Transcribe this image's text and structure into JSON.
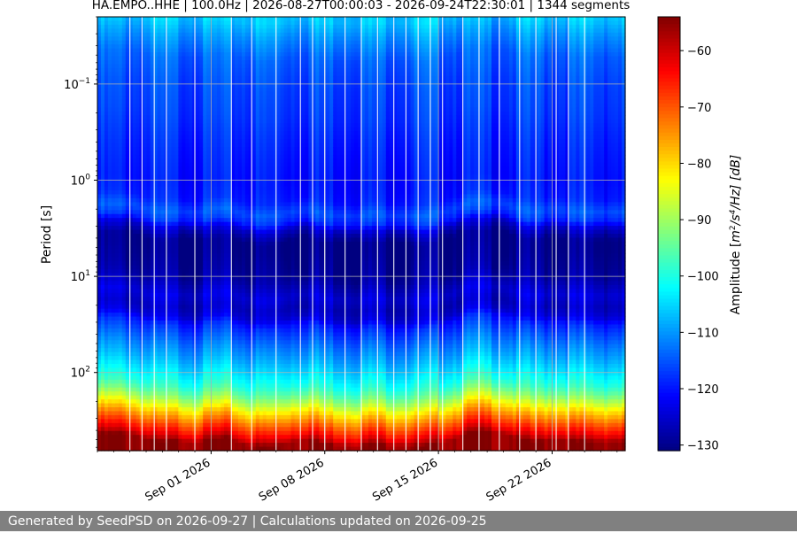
{
  "chart_data": {
    "type": "heatmap",
    "title": "HA.EMPO..HHE | 100.0Hz | 2026-08-27T00:00:03 - 2026-09-24T22:30:01 | 1344 segments",
    "xlabel": "",
    "ylabel": "Period [s]",
    "colorbar_label": "Amplitude [m²/s⁴/Hz] [dB]",
    "colorbar_label_parts": {
      "prefix": "Amplitude [",
      "m": "m",
      "sq": "2",
      "mid": "/s",
      "four": "4",
      "suffix": "/Hz] [dB]"
    },
    "colormap": "jet",
    "y_scale": "log",
    "y_inverted": true,
    "y_range": [
      0.02,
      650
    ],
    "y_ticks": [
      {
        "value": 0.1,
        "base": "10",
        "exp": "−1"
      },
      {
        "value": 1,
        "base": "10",
        "exp": "0"
      },
      {
        "value": 10,
        "base": "10",
        "exp": "1"
      },
      {
        "value": 100,
        "base": "10",
        "exp": "2"
      }
    ],
    "x_range": [
      "2026-08-25T00:00:00",
      "2026-09-26T12:00:00"
    ],
    "x_ticks": [
      {
        "date": "2026-09-01",
        "label": "Sep 01 2026"
      },
      {
        "date": "2026-09-08",
        "label": "Sep 08 2026"
      },
      {
        "date": "2026-09-15",
        "label": "Sep 15 2026"
      },
      {
        "date": "2026-09-22",
        "label": "Sep 22 2026"
      }
    ],
    "color_range": [
      -131,
      -54
    ],
    "colorbar_ticks": [
      -130,
      -120,
      -110,
      -100,
      -90,
      -80,
      -70,
      -60
    ],
    "grid": true,
    "level_profile": {
      "period_s": [
        0.02,
        0.03,
        0.05,
        0.1,
        0.2,
        0.3,
        0.5,
        1,
        1.5,
        2,
        2.5,
        3,
        4,
        5,
        8,
        10,
        15,
        20,
        25,
        30,
        40,
        50,
        70,
        100,
        130,
        160,
        200,
        250,
        300,
        350,
        400,
        450,
        500,
        650
      ],
      "amplitude_db": [
        -106,
        -110,
        -114,
        -116,
        -117,
        -118,
        -119,
        -120,
        -119,
        -115,
        -118,
        -125,
        -130,
        -130,
        -129,
        -128,
        -124,
        -126,
        -124,
        -119,
        -115,
        -112,
        -108,
        -103,
        -99,
        -94,
        -87,
        -79,
        -73,
        -68,
        -64,
        -60,
        -55,
        -55
      ]
    },
    "time_series": {
      "dates": [
        "2026-08-27",
        "2026-08-28",
        "2026-08-29",
        "2026-08-30",
        "2026-08-31",
        "2026-09-01",
        "2026-09-02",
        "2026-09-03",
        "2026-09-04",
        "2026-09-05",
        "2026-09-06",
        "2026-09-07",
        "2026-09-08",
        "2026-09-09",
        "2026-09-10",
        "2026-09-11",
        "2026-09-12",
        "2026-09-13",
        "2026-09-14",
        "2026-09-15",
        "2026-09-16",
        "2026-09-17",
        "2026-09-18",
        "2026-09-19",
        "2026-09-20",
        "2026-09-21",
        "2026-09-22",
        "2026-09-23",
        "2026-09-24"
      ],
      "quiet_period_s": [
        2.6,
        3.0,
        3.2,
        3.1,
        3.3,
        3.0,
        2.9,
        3.4,
        3.6,
        3.5,
        3.2,
        3.0,
        3.4,
        3.5,
        3.6,
        3.3,
        3.5,
        3.5,
        3.6,
        3.3,
        3.0,
        2.5,
        2.5,
        2.6,
        3.0,
        3.2,
        3.0,
        3.1,
        3.2
      ]
    },
    "white_lines": [
      "2026-08-27T00:00:00",
      "2026-08-27T18:00:00",
      "2026-08-28T12:00:00",
      "2026-08-29T06:00:00",
      "2026-08-31T00:00:00",
      "2026-09-02T06:00:00",
      "2026-09-03T12:00:00",
      "2026-09-05T00:00:00",
      "2026-09-06T12:00:00",
      "2026-09-07T06:00:00",
      "2026-09-08T00:00:00",
      "2026-09-09T06:00:00",
      "2026-09-10T06:00:00",
      "2026-09-11T06:00:00",
      "2026-09-12T06:00:00",
      "2026-09-13T00:00:00",
      "2026-09-13T18:00:00",
      "2026-09-14T12:00:00",
      "2026-09-15T06:00:00",
      "2026-09-16T12:00:00",
      "2026-09-17T12:00:00",
      "2026-09-18T18:00:00",
      "2026-09-20T00:00:00",
      "2026-09-21T00:00:00",
      "2026-09-22T06:00:00",
      "2026-09-23T00:00:00",
      "2026-09-24T00:00:00"
    ]
  },
  "footer": {
    "text": "Generated by SeedPSD on 2026-09-27 | Calculations updated on 2026-09-25"
  }
}
